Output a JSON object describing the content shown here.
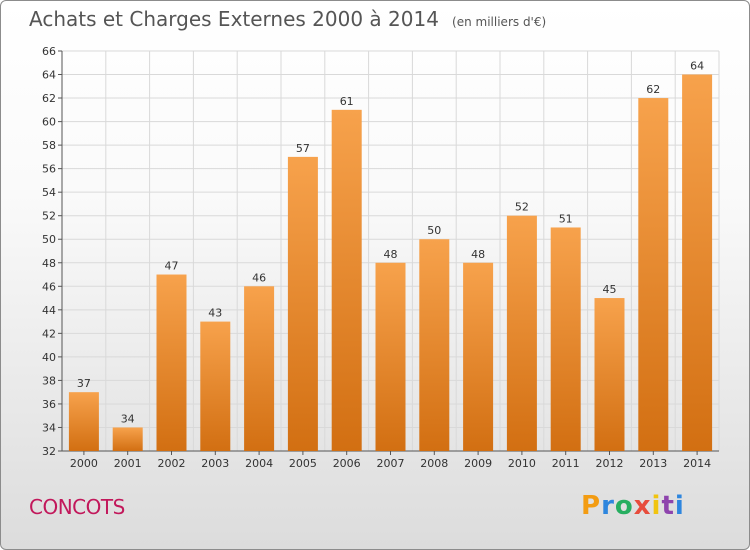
{
  "header": {
    "title": "Achats et Charges Externes 2000 à 2014",
    "subtitle": "(en milliers d'€)"
  },
  "footer": {
    "place": "CONCOTS",
    "logo_letters": [
      "P",
      "r",
      "o",
      "x",
      "i",
      "t",
      "i"
    ],
    "logo_colors": [
      "#f39c12",
      "#2e86de",
      "#27ae60",
      "#e74c3c",
      "#f1c40f",
      "#8e44ad",
      "#2e86de"
    ]
  },
  "colors": {
    "bar_top": "#f7a24c",
    "bar_bottom": "#d26f12",
    "grid": "#d9d9d9",
    "axis": "#555555",
    "text": "#333333"
  },
  "chart_data": {
    "type": "bar",
    "title": "Achats et Charges Externes 2000 à 2014",
    "subtitle": "(en milliers d'€)",
    "categories": [
      "2000",
      "2001",
      "2002",
      "2003",
      "2004",
      "2005",
      "2006",
      "2007",
      "2008",
      "2009",
      "2010",
      "2011",
      "2012",
      "2013",
      "2014"
    ],
    "values": [
      37,
      34,
      47,
      43,
      46,
      57,
      61,
      48,
      50,
      48,
      52,
      51,
      45,
      62,
      64
    ],
    "ylim": [
      32,
      66
    ],
    "yticks": [
      32,
      34,
      36,
      38,
      40,
      42,
      44,
      46,
      48,
      50,
      52,
      54,
      56,
      58,
      60,
      62,
      64,
      66
    ],
    "grid": true,
    "data_labels": true
  }
}
